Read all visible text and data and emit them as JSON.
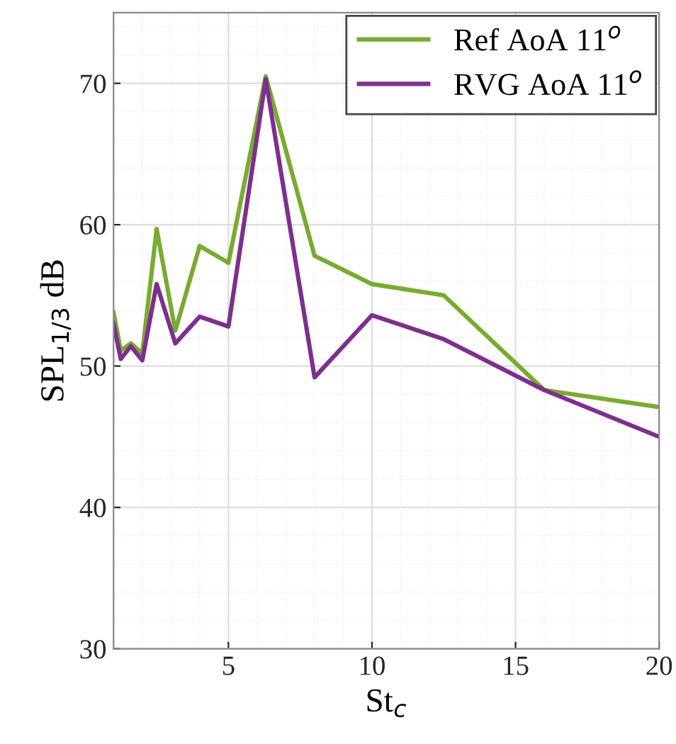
{
  "chart_data": {
    "type": "line",
    "xlabel": "St$_{c}$",
    "ylabel": "SPL$_{1/3}$ dB",
    "x": [
      1,
      1.25,
      1.6,
      2,
      2.5,
      3.15,
      4,
      5,
      6.3,
      8,
      10,
      12.5,
      16,
      20
    ],
    "series": [
      {
        "name": "Ref AoA 11$^{o}$",
        "color": "#77ac30",
        "values": [
          53.8,
          51.1,
          51.6,
          50.9,
          59.7,
          52.5,
          58.5,
          57.3,
          70.5,
          57.8,
          55.8,
          55.0,
          48.3,
          47.1
        ]
      },
      {
        "name": "RVG AoA 11$^{o}$",
        "color": "#7e2f8e",
        "values": [
          53.0,
          50.5,
          51.4,
          50.4,
          55.8,
          51.6,
          53.5,
          52.8,
          70.3,
          49.2,
          53.6,
          51.9,
          48.3,
          45.0
        ]
      }
    ],
    "xlim": [
      1,
      20
    ],
    "ylim": [
      30,
      75
    ],
    "xticks": [
      5,
      10,
      15,
      20
    ],
    "yticks": [
      30,
      40,
      50,
      60,
      70
    ],
    "grid": true,
    "legend": "top right",
    "marker": "none",
    "line_style": "solid"
  }
}
